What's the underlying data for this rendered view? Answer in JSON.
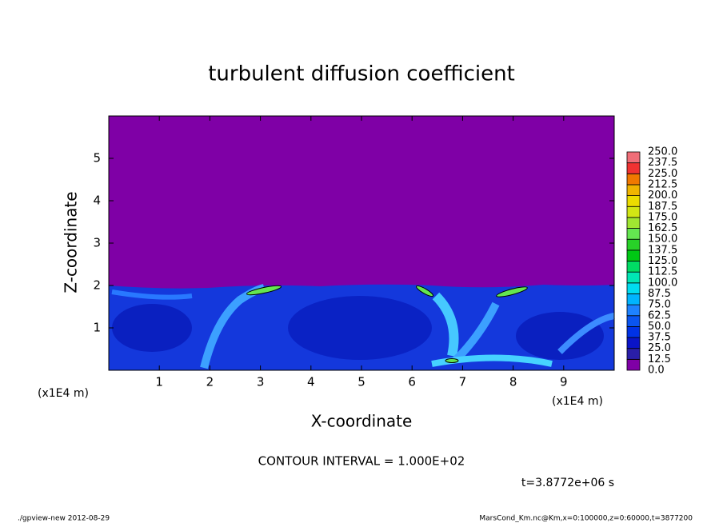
{
  "chart_data": {
    "type": "heatmap",
    "title": "turbulent diffusion coefficient",
    "xlabel": "X-coordinate",
    "ylabel": "Z-coordinate",
    "x_unit": "(x1E4 m)",
    "xlim": [
      0,
      10
    ],
    "xticks": [
      1,
      2,
      3,
      4,
      5,
      6,
      7,
      8,
      9
    ],
    "ylim": [
      0,
      6
    ],
    "yticks": [
      1,
      2,
      3,
      4,
      5
    ],
    "levels": [
      {
        "value": 0,
        "label": "0.0"
      },
      12.5,
      {
        "value": 25,
        "label": "25.0"
      },
      37.5,
      {
        "value": 50,
        "label": "50.0"
      },
      62.5,
      {
        "value": 75,
        "label": "75.0"
      },
      87.5,
      {
        "value": 100,
        "label": "100.0"
      },
      112.5,
      {
        "value": 125,
        "label": "125.0"
      },
      137.5,
      {
        "value": 150,
        "label": "150.0"
      },
      162.5,
      {
        "value": 175,
        "label": "175.0"
      },
      187.5,
      {
        "value": 200,
        "label": "200.0"
      },
      212.5,
      {
        "value": 225,
        "label": "225.0"
      },
      237.5,
      {
        "value": 250,
        "label": "250.0"
      }
    ],
    "colors": [
      "#7f00a6",
      "#2a1ea8",
      "#0a14c8",
      "#0032e6",
      "#0a55f0",
      "#1e82ff",
      "#00b4ff",
      "#00dcf0",
      "#00e6b4",
      "#00dc64",
      "#00c814",
      "#28d228",
      "#64e650",
      "#a0e632",
      "#d2e614",
      "#ecdc00",
      "#f0b400",
      "#f07800",
      "#f03232",
      "#f06e78"
    ],
    "contour_note": "CONTOUR INTERVAL = 1.000E+02",
    "time_label": "t=3.8772e+06 s",
    "footer_left": "./gpview-new  2012-08-29",
    "footer_right": "MarsCond_Km.nc@Km,x=0:100000,z=0:60000,t=3877200"
  }
}
